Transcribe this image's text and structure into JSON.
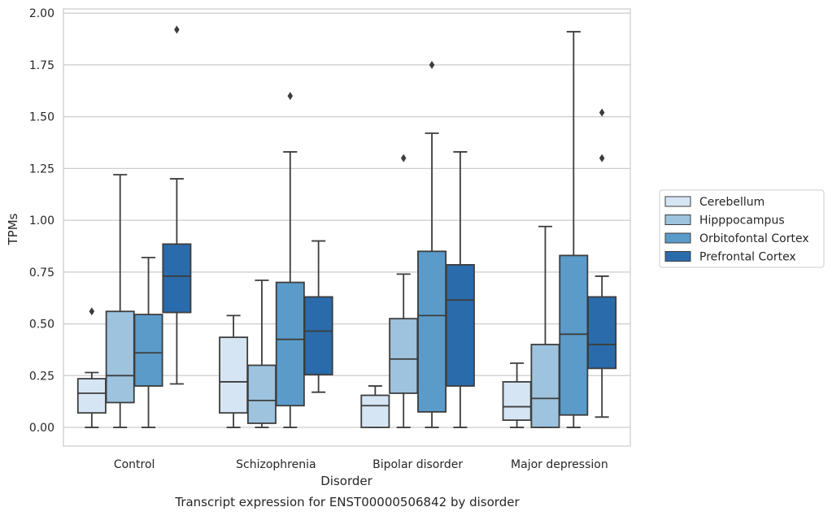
{
  "chart_data": {
    "type": "box",
    "title": "",
    "caption": "Transcript expression for ENST00000506842 by disorder",
    "xlabel": "Disorder",
    "ylabel": "TPMs",
    "ylim": [
      -0.09,
      2.02
    ],
    "yticks": [
      0.0,
      0.25,
      0.5,
      0.75,
      1.0,
      1.25,
      1.5,
      1.75,
      2.0
    ],
    "ytick_labels": [
      "0.00",
      "0.25",
      "0.50",
      "0.75",
      "1.00",
      "1.25",
      "1.50",
      "1.75",
      "2.00"
    ],
    "grid": true,
    "legend_position": "right",
    "categories": [
      "Control",
      "Schizophrenia",
      "Bipolar disorder",
      "Major depression"
    ],
    "series": [
      {
        "name": "Cerebellum",
        "color": "#d6e5f3",
        "boxes": [
          {
            "whislo": 0.0,
            "q1": 0.07,
            "med": 0.165,
            "q3": 0.235,
            "whishi": 0.265,
            "fliers": [
              0.56
            ]
          },
          {
            "whislo": 0.0,
            "q1": 0.07,
            "med": 0.22,
            "q3": 0.435,
            "whishi": 0.54,
            "fliers": []
          },
          {
            "whislo": 0.0,
            "q1": 0.0,
            "med": 0.105,
            "q3": 0.155,
            "whishi": 0.2,
            "fliers": []
          },
          {
            "whislo": 0.0,
            "q1": 0.035,
            "med": 0.1,
            "q3": 0.22,
            "whishi": 0.31,
            "fliers": []
          }
        ]
      },
      {
        "name": "Hipppocampus",
        "color": "#9dc3de",
        "boxes": [
          {
            "whislo": 0.0,
            "q1": 0.12,
            "med": 0.25,
            "q3": 0.56,
            "whishi": 1.22,
            "fliers": []
          },
          {
            "whislo": 0.0,
            "q1": 0.02,
            "med": 0.13,
            "q3": 0.3,
            "whishi": 0.71,
            "fliers": []
          },
          {
            "whislo": 0.0,
            "q1": 0.165,
            "med": 0.33,
            "q3": 0.525,
            "whishi": 0.74,
            "fliers": [
              1.3
            ]
          },
          {
            "whislo": 0.0,
            "q1": 0.0,
            "med": 0.14,
            "q3": 0.4,
            "whishi": 0.97,
            "fliers": []
          }
        ]
      },
      {
        "name": "Orbitofontal Cortex",
        "color": "#5b9bc9",
        "boxes": [
          {
            "whislo": 0.0,
            "q1": 0.2,
            "med": 0.36,
            "q3": 0.545,
            "whishi": 0.82,
            "fliers": []
          },
          {
            "whislo": 0.0,
            "q1": 0.105,
            "med": 0.425,
            "q3": 0.7,
            "whishi": 1.33,
            "fliers": [
              1.6
            ]
          },
          {
            "whislo": 0.0,
            "q1": 0.075,
            "med": 0.54,
            "q3": 0.85,
            "whishi": 1.42,
            "fliers": [
              1.75
            ]
          },
          {
            "whislo": 0.0,
            "q1": 0.06,
            "med": 0.45,
            "q3": 0.83,
            "whishi": 1.91,
            "fliers": []
          }
        ]
      },
      {
        "name": "Prefrontal Cortex",
        "color": "#2a6bab",
        "boxes": [
          {
            "whislo": 0.21,
            "q1": 0.555,
            "med": 0.73,
            "q3": 0.885,
            "whishi": 1.2,
            "fliers": [
              1.92
            ]
          },
          {
            "whislo": 0.17,
            "q1": 0.255,
            "med": 0.465,
            "q3": 0.63,
            "whishi": 0.9,
            "fliers": []
          },
          {
            "whislo": 0.0,
            "q1": 0.2,
            "med": 0.615,
            "q3": 0.785,
            "whishi": 1.33,
            "fliers": []
          },
          {
            "whislo": 0.05,
            "q1": 0.285,
            "med": 0.4,
            "q3": 0.63,
            "whishi": 0.73,
            "fliers": [
              1.3,
              1.52
            ]
          }
        ]
      }
    ]
  }
}
